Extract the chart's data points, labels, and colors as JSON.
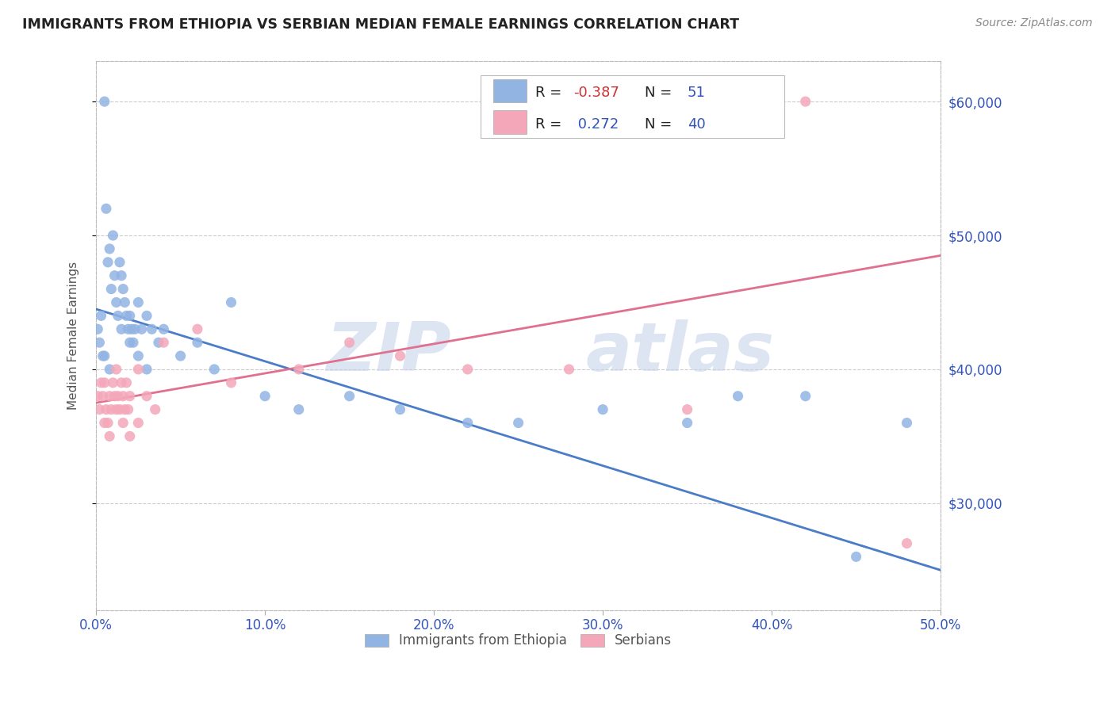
{
  "title": "IMMIGRANTS FROM ETHIOPIA VS SERBIAN MEDIAN FEMALE EARNINGS CORRELATION CHART",
  "source": "Source: ZipAtlas.com",
  "ylabel": "Median Female Earnings",
  "xlim": [
    0.0,
    0.5
  ],
  "ylim": [
    22000,
    63000
  ],
  "ytick_labels": [
    "$30,000",
    "$40,000",
    "$50,000",
    "$60,000"
  ],
  "ytick_values": [
    30000,
    40000,
    50000,
    60000
  ],
  "xtick_labels": [
    "0.0%",
    "10.0%",
    "20.0%",
    "30.0%",
    "40.0%",
    "50.0%"
  ],
  "xtick_values": [
    0.0,
    0.1,
    0.2,
    0.3,
    0.4,
    0.5
  ],
  "blue_color": "#92b4e3",
  "pink_color": "#f4a7b9",
  "blue_line_color": "#4a7cc7",
  "pink_line_color": "#e07090",
  "legend_R1": "-0.387",
  "legend_N1": "51",
  "legend_R2": "0.272",
  "legend_N2": "40",
  "legend_label1": "Immigrants from Ethiopia",
  "legend_label2": "Serbians",
  "watermark_zip": "ZIP",
  "watermark_atlas": "atlas",
  "background_color": "#ffffff",
  "grid_color": "#cccccc",
  "blue_x": [
    0.001,
    0.002,
    0.003,
    0.004,
    0.005,
    0.006,
    0.007,
    0.008,
    0.009,
    0.01,
    0.011,
    0.012,
    0.013,
    0.014,
    0.015,
    0.016,
    0.017,
    0.018,
    0.019,
    0.02,
    0.021,
    0.022,
    0.023,
    0.025,
    0.027,
    0.03,
    0.033,
    0.037,
    0.04,
    0.05,
    0.06,
    0.07,
    0.08,
    0.1,
    0.12,
    0.15,
    0.18,
    0.22,
    0.25,
    0.3,
    0.35,
    0.38,
    0.42,
    0.45,
    0.48,
    0.005,
    0.008,
    0.015,
    0.02,
    0.025,
    0.03
  ],
  "blue_y": [
    43000,
    42000,
    44000,
    41000,
    60000,
    52000,
    48000,
    49000,
    46000,
    50000,
    47000,
    45000,
    44000,
    48000,
    47000,
    46000,
    45000,
    44000,
    43000,
    44000,
    43000,
    42000,
    43000,
    45000,
    43000,
    44000,
    43000,
    42000,
    43000,
    41000,
    42000,
    40000,
    45000,
    38000,
    37000,
    38000,
    37000,
    36000,
    36000,
    37000,
    36000,
    38000,
    38000,
    26000,
    36000,
    41000,
    40000,
    43000,
    42000,
    41000,
    40000
  ],
  "pink_x": [
    0.001,
    0.002,
    0.003,
    0.004,
    0.005,
    0.006,
    0.007,
    0.008,
    0.009,
    0.01,
    0.011,
    0.012,
    0.013,
    0.014,
    0.015,
    0.016,
    0.017,
    0.018,
    0.019,
    0.02,
    0.025,
    0.03,
    0.035,
    0.04,
    0.06,
    0.08,
    0.12,
    0.15,
    0.18,
    0.22,
    0.28,
    0.35,
    0.42,
    0.005,
    0.008,
    0.012,
    0.016,
    0.02,
    0.025,
    0.48
  ],
  "pink_y": [
    38000,
    37000,
    39000,
    38000,
    39000,
    37000,
    36000,
    38000,
    37000,
    39000,
    38000,
    40000,
    38000,
    37000,
    39000,
    38000,
    37000,
    39000,
    37000,
    38000,
    40000,
    38000,
    37000,
    42000,
    43000,
    39000,
    40000,
    42000,
    41000,
    40000,
    40000,
    37000,
    60000,
    36000,
    35000,
    37000,
    36000,
    35000,
    36000,
    27000
  ],
  "blue_trend_x0": 0.0,
  "blue_trend_x1": 0.5,
  "blue_trend_y0": 44500,
  "blue_trend_y1": 25000,
  "pink_trend_x0": 0.0,
  "pink_trend_x1": 0.5,
  "pink_trend_y0": 37500,
  "pink_trend_y1": 48500
}
